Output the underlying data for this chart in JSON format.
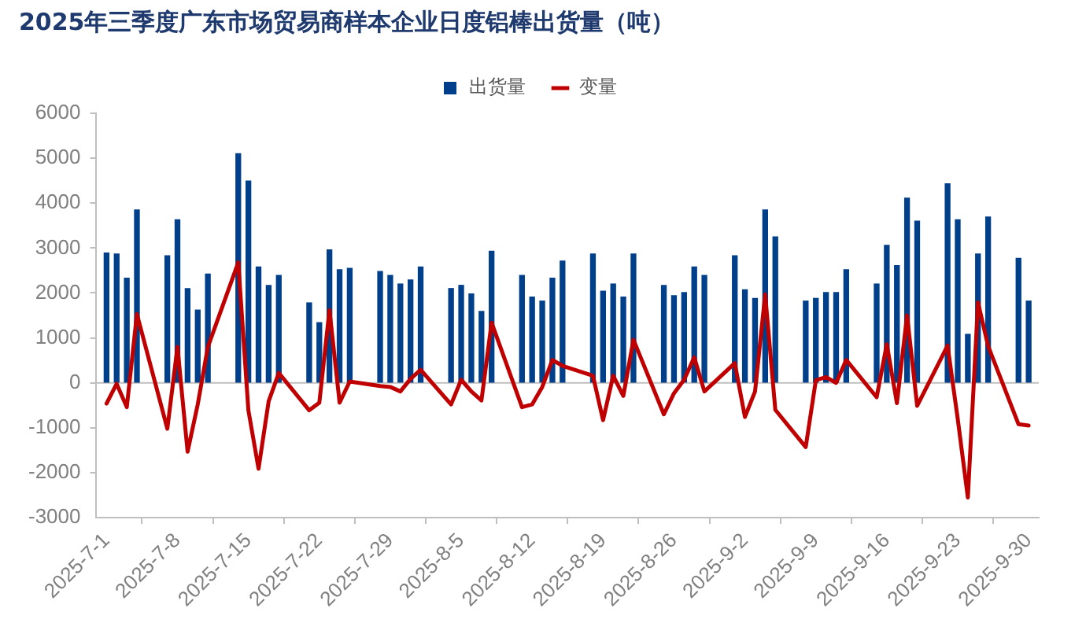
{
  "chart_data": {
    "type": "bar",
    "title": "2025年三季度广东市场贸易商样本企业日度铝棒出货量（吨）",
    "x": [
      "2025-07-01",
      "2025-07-02",
      "2025-07-03",
      "2025-07-04",
      "2025-07-07",
      "2025-07-08",
      "2025-07-09",
      "2025-07-10",
      "2025-07-11",
      "2025-07-14",
      "2025-07-15",
      "2025-07-16",
      "2025-07-17",
      "2025-07-18",
      "2025-07-21",
      "2025-07-22",
      "2025-07-23",
      "2025-07-24",
      "2025-07-25",
      "2025-07-28",
      "2025-07-29",
      "2025-07-30",
      "2025-07-31",
      "2025-08-01",
      "2025-08-04",
      "2025-08-05",
      "2025-08-06",
      "2025-08-07",
      "2025-08-08",
      "2025-08-11",
      "2025-08-12",
      "2025-08-13",
      "2025-08-14",
      "2025-08-15",
      "2025-08-18",
      "2025-08-19",
      "2025-08-20",
      "2025-08-21",
      "2025-08-22",
      "2025-08-25",
      "2025-08-26",
      "2025-08-27",
      "2025-08-28",
      "2025-08-29",
      "2025-09-01",
      "2025-09-02",
      "2025-09-03",
      "2025-09-04",
      "2025-09-05",
      "2025-09-08",
      "2025-09-09",
      "2025-09-10",
      "2025-09-11",
      "2025-09-12",
      "2025-09-15",
      "2025-09-16",
      "2025-09-17",
      "2025-09-18",
      "2025-09-19",
      "2025-09-22",
      "2025-09-23",
      "2025-09-24",
      "2025-09-25",
      "2025-09-26",
      "2025-09-29",
      "2025-09-30"
    ],
    "series": [
      {
        "name": "出货量",
        "color": "#003f8a",
        "values": [
          2890,
          2870,
          2330,
          3850,
          2830,
          3630,
          2100,
          1620,
          2420,
          5100,
          4490,
          2580,
          2170,
          2390,
          1780,
          1340,
          2960,
          2520,
          2550,
          2480,
          2390,
          2200,
          2290,
          2580,
          2100,
          2170,
          1980,
          1590,
          2930,
          2390,
          1910,
          1820,
          2330,
          2710,
          2870,
          2040,
          2200,
          1910,
          2870,
          2170,
          1940,
          2010,
          2580,
          2390,
          2830,
          2070,
          1880,
          3850,
          3250,
          1820,
          1880,
          2010,
          2010,
          2520,
          2200,
          3060,
          2610,
          4110,
          3600,
          4430,
          3630,
          1080,
          2870,
          3690,
          2770,
          1820
        ]
      },
      {
        "name": "变量",
        "type": "line",
        "color": "#c00000",
        "values": [
          -460,
          -20,
          -540,
          1530,
          -1020,
          800,
          -1530,
          -480,
          800,
          2680,
          -610,
          -1910,
          -410,
          220,
          -610,
          -440,
          1620,
          -440,
          30,
          -70,
          -90,
          -190,
          90,
          290,
          -480,
          70,
          -190,
          -390,
          1340,
          -540,
          -480,
          -90,
          510,
          380,
          160,
          -830,
          160,
          -290,
          960,
          -700,
          -230,
          70,
          570,
          -190,
          440,
          -760,
          -190,
          1970,
          -600,
          -1430,
          60,
          130,
          0,
          510,
          -320,
          860,
          -450,
          1500,
          -510,
          830,
          -800,
          -2550,
          1790,
          820,
          -920,
          -950
        ]
      }
    ],
    "xlim": [
      "2025-06-30",
      "2025-10-01"
    ],
    "xticks": [
      {
        "value": "2025-07-01",
        "label": "2025-7-1"
      },
      {
        "value": "2025-07-08",
        "label": "2025-7-8"
      },
      {
        "value": "2025-07-15",
        "label": "2025-7-15"
      },
      {
        "value": "2025-07-22",
        "label": "2025-7-22"
      },
      {
        "value": "2025-07-29",
        "label": "2025-7-29"
      },
      {
        "value": "2025-08-05",
        "label": "2025-8-5"
      },
      {
        "value": "2025-08-12",
        "label": "2025-8-12"
      },
      {
        "value": "2025-08-19",
        "label": "2025-8-19"
      },
      {
        "value": "2025-08-26",
        "label": "2025-8-26"
      },
      {
        "value": "2025-09-02",
        "label": "2025-9-2"
      },
      {
        "value": "2025-09-09",
        "label": "2025-9-9"
      },
      {
        "value": "2025-09-16",
        "label": "2025-9-16"
      },
      {
        "value": "2025-09-23",
        "label": "2025-9-23"
      },
      {
        "value": "2025-09-30",
        "label": "2025-9-30"
      }
    ],
    "ylim": [
      -3000,
      6000
    ],
    "yticks": [
      -3000,
      -2000,
      -1000,
      0,
      1000,
      2000,
      3000,
      4000,
      5000,
      6000
    ],
    "ref_lines": [
      {
        "axis": "y",
        "value": 0,
        "color": "#bfbfbf"
      }
    ],
    "grid": false,
    "legend": "top",
    "marker": "none",
    "line_style": "solid"
  }
}
